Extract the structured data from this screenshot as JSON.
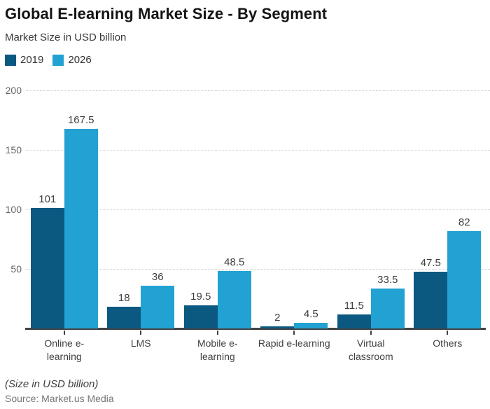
{
  "header": {
    "title": "Global E-learning Market Size - By Segment",
    "subtitle": "Market Size in USD billion"
  },
  "legend": {
    "items": [
      {
        "label": "2019",
        "color": "#0b5881"
      },
      {
        "label": "2026",
        "color": "#21a2d2"
      }
    ]
  },
  "chart_data": {
    "type": "bar",
    "title": "Global E-learning Market Size - By Segment",
    "subtitle": "Market Size in USD billion",
    "categories": [
      "Online e-learning",
      "LMS",
      "Mobile e-learning",
      "Rapid e-learning",
      "Virtual classroom",
      "Others"
    ],
    "category_lines": [
      [
        "Online e-",
        "learning"
      ],
      [
        "LMS"
      ],
      [
        "Mobile e-",
        "learning"
      ],
      [
        "Rapid e-learning"
      ],
      [
        "Virtual",
        "classroom"
      ],
      [
        "Others"
      ]
    ],
    "series": [
      {
        "name": "2019",
        "color": "#0b5881",
        "values": [
          101,
          18,
          19.5,
          2,
          11.5,
          47.5
        ]
      },
      {
        "name": "2026",
        "color": "#21a2d2",
        "values": [
          167.5,
          36,
          48.5,
          4.5,
          33.5,
          82
        ]
      }
    ],
    "value_labels": [
      [
        "101",
        "18",
        "19.5",
        "2",
        "11.5",
        "47.5"
      ],
      [
        "167.5",
        "36",
        "48.5",
        "4.5",
        "33.5",
        "82"
      ]
    ],
    "xlabel": "",
    "ylabel": "",
    "ylim": [
      0,
      200
    ],
    "yticks": [
      50,
      100,
      150,
      200
    ],
    "grid": true,
    "grid_color": "#d6d6d6",
    "axis_color": "#424242",
    "legend_position": "top-left"
  },
  "footer": {
    "note": "(Size in USD billion)",
    "source": "Source: Market.us Media"
  }
}
